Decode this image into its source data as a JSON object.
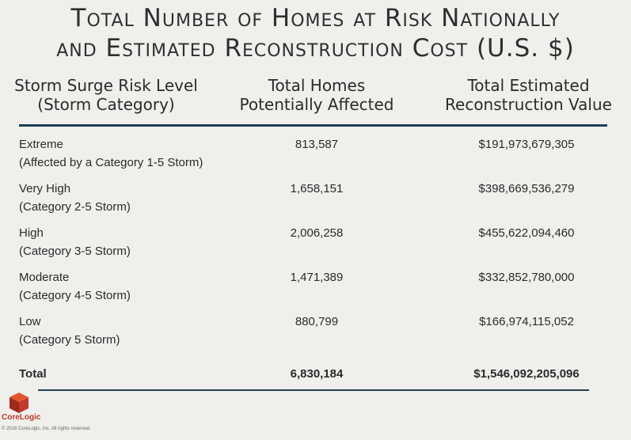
{
  "title": {
    "line1": "Total Number of Homes at Risk Nationally",
    "line2": "and Estimated Reconstruction Cost (U.S. $)"
  },
  "chart_data": {
    "type": "table",
    "headers": [
      [
        "Storm Surge Risk Level",
        "(Storm Category)"
      ],
      [
        "Total Homes",
        "Potentially Affected"
      ],
      [
        "Total Estimated",
        "Reconstruction Value"
      ]
    ],
    "rows": [
      {
        "level": "Extreme",
        "category": "(Affected by a Category 1-5 Storm)",
        "homes": "813,587",
        "value": "$191,973,679,305"
      },
      {
        "level": "Very High",
        "category": "(Category 2-5 Storm)",
        "homes": "1,658,151",
        "value": "$398,669,536,279"
      },
      {
        "level": "High",
        "category": "(Category 3-5 Storm)",
        "homes": "2,006,258",
        "value": "$455,622,094,460"
      },
      {
        "level": "Moderate",
        "category": "(Category 4-5 Storm)",
        "homes": "1,471,389",
        "value": "$332,852,780,000"
      },
      {
        "level": "Low",
        "category": "(Category 5 Storm)",
        "homes": "880,799",
        "value": "$166,974,115,052"
      }
    ],
    "total": {
      "label": "Total",
      "homes": "6,830,184",
      "value": "$1,546,092,205,096"
    }
  },
  "footer": {
    "logo_text": "CoreLogic",
    "copyright": "© 2016 CoreLogic, Inc. All rights reserved."
  },
  "colors": {
    "rule": "#1e3f52",
    "logo_red": "#c0392b",
    "background": "#f0efeb"
  }
}
